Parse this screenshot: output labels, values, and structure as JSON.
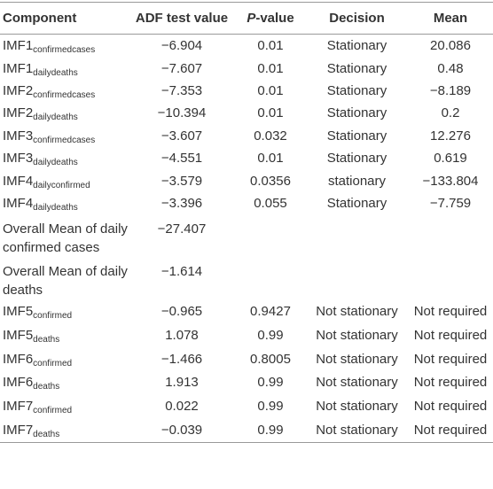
{
  "table": {
    "header": [
      "Component",
      "ADF test value",
      {
        "italic": "P",
        "rest": "-value"
      },
      "Decision",
      "Mean"
    ],
    "rows": [
      {
        "component": {
          "main": "IMF1",
          "sub": "confirmedcases"
        },
        "cells": [
          "−6.904",
          "0.01",
          "Stationary",
          "20.086"
        ]
      },
      {
        "component": {
          "main": "IMF1",
          "sub": "dailydeaths"
        },
        "cells": [
          "−7.607",
          "0.01",
          "Stationary",
          "0.48"
        ]
      },
      {
        "component": {
          "main": "IMF2",
          "sub": "confirmedcases"
        },
        "cells": [
          "−7.353",
          "0.01",
          "Stationary",
          "−8.189"
        ]
      },
      {
        "component": {
          "main": "IMF2",
          "sub": "dailydeaths"
        },
        "cells": [
          "−10.394",
          "0.01",
          "Stationary",
          "0.2"
        ]
      },
      {
        "component": {
          "main": "IMF3",
          "sub": "confirmedcases"
        },
        "cells": [
          "−3.607",
          "0.032",
          "Stationary",
          "12.276"
        ]
      },
      {
        "component": {
          "main": "IMF3",
          "sub": "dailydeaths"
        },
        "cells": [
          "−4.551",
          "0.01",
          "Stationary",
          "0.619"
        ]
      },
      {
        "component": {
          "main": "IMF4",
          "sub": "dailyconfirmed"
        },
        "cells": [
          "−3.579",
          "0.0356",
          "stationary",
          "−133.804"
        ]
      },
      {
        "component": {
          "main": "IMF4",
          "sub": "dailydeaths"
        },
        "cells": [
          "−3.396",
          "0.055",
          "Stationary",
          "−7.759"
        ]
      },
      {
        "component": {
          "main": "Overall Mean of daily confirmed cases"
        },
        "cells": [
          "−27.407"
        ]
      },
      {
        "component": {
          "main": "Overall Mean of daily deaths"
        },
        "cells": [
          "−1.614"
        ]
      },
      {
        "component": {
          "main": "IMF5",
          "sub": "confirmed"
        },
        "cells": [
          "−0.965",
          "0.9427",
          "Not stationary",
          "Not required"
        ]
      },
      {
        "component": {
          "main": "IMF5",
          "sub": "deaths"
        },
        "cells": [
          "1.078",
          "0.99",
          "Not stationary",
          "Not required"
        ]
      },
      {
        "component": {
          "main": "IMF6",
          "sub": "confirmed"
        },
        "cells": [
          "−1.466",
          "0.8005",
          "Not stationary",
          "Not required"
        ]
      },
      {
        "component": {
          "main": "IMF6",
          "sub": "deaths"
        },
        "cells": [
          "1.913",
          "0.99",
          "Not stationary",
          "Not required"
        ]
      },
      {
        "component": {
          "main": "IMF7",
          "sub": "confirmed"
        },
        "cells": [
          "0.022",
          "0.99",
          "Not stationary",
          "Not required"
        ]
      },
      {
        "component": {
          "main": "IMF7",
          "sub": "deaths"
        },
        "cells": [
          "−0.039",
          "0.99",
          "Not stationary",
          "Not required"
        ]
      }
    ]
  }
}
